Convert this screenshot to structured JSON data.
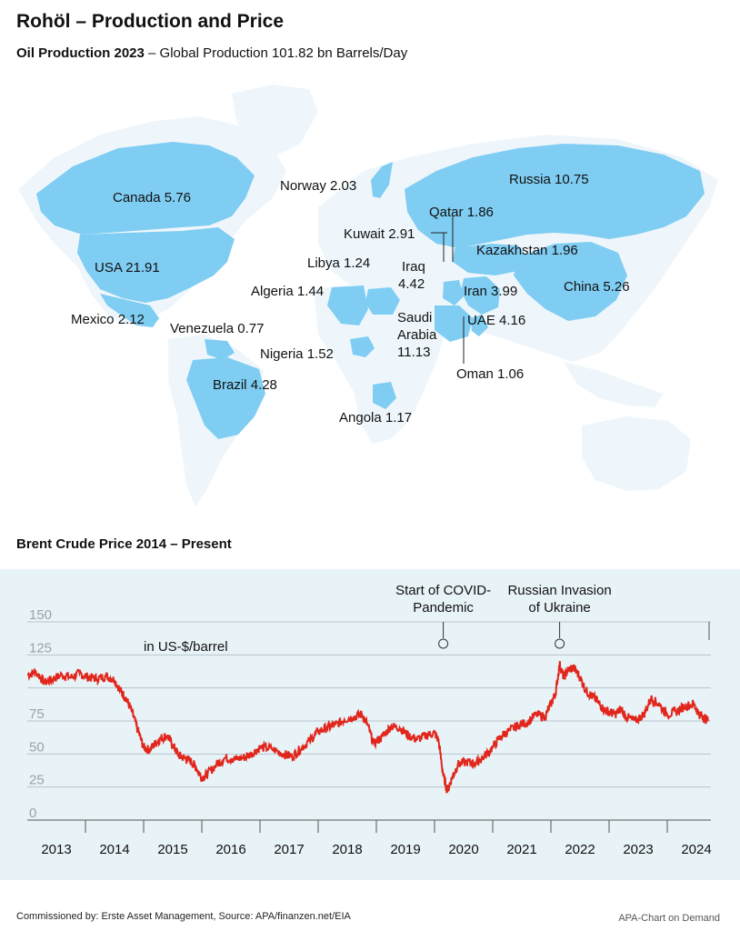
{
  "header": {
    "title": "Rohöl – Production and Price",
    "subtitle_bold": "Oil Production 2023",
    "subtitle_rest": " – Global Production 101.82 bn Barrels/Day"
  },
  "map": {
    "land_color": "#eef6fb",
    "highlight_color": "#7fcdf2",
    "countries": [
      {
        "name": "Canada",
        "value": "5.76"
      },
      {
        "name": "USA",
        "value": "21.91"
      },
      {
        "name": "Mexico",
        "value": "2.12"
      },
      {
        "name": "Venezuela",
        "value": "0.77"
      },
      {
        "name": "Brazil",
        "value": "4.28"
      },
      {
        "name": "Norway",
        "value": "2.03"
      },
      {
        "name": "Russia",
        "value": "10.75"
      },
      {
        "name": "Qatar",
        "value": "1.86"
      },
      {
        "name": "Kuwait",
        "value": "2.91"
      },
      {
        "name": "Kazakhstan",
        "value": "1.96"
      },
      {
        "name": "Libya",
        "value": "1.24"
      },
      {
        "name": "Iraq",
        "value": "4.42"
      },
      {
        "name": "Algeria",
        "value": "1.44"
      },
      {
        "name": "Iran",
        "value": "3.99"
      },
      {
        "name": "China",
        "value": "5.26"
      },
      {
        "name": "UAE",
        "value": "4.16"
      },
      {
        "name": "Saudi Arabia",
        "value": "11.13"
      },
      {
        "name": "Nigeria",
        "value": "1.52"
      },
      {
        "name": "Oman",
        "value": "1.06"
      },
      {
        "name": "Angola",
        "value": "1.17"
      }
    ]
  },
  "chart_data": {
    "type": "line",
    "title": "Brent Crude Price 2014 – Present",
    "unit_label": "in US-$/barrel",
    "line_color": "#e1261c",
    "ylim": [
      0,
      150
    ],
    "yticks": [
      0,
      25,
      50,
      75,
      125,
      150
    ],
    "x_tick_labels": [
      "2013",
      "2014",
      "2015",
      "2016",
      "2017",
      "2018",
      "2019",
      "2020",
      "2021",
      "2022",
      "2023",
      "2024"
    ],
    "xlim": [
      2013.0,
      2024.75
    ],
    "series": [
      {
        "values_x": [
          2013.0,
          2013.15,
          2013.3,
          2013.45,
          2013.6,
          2013.75,
          2013.9,
          2014.05,
          2014.2,
          2014.35,
          2014.5,
          2014.6,
          2014.7,
          2014.8,
          2014.9,
          2015.0,
          2015.1,
          2015.2,
          2015.3,
          2015.4,
          2015.5,
          2015.6,
          2015.7,
          2015.8,
          2015.9,
          2016.0,
          2016.1,
          2016.25,
          2016.4,
          2016.55,
          2016.7,
          2016.85,
          2017.0,
          2017.2,
          2017.4,
          2017.55,
          2017.7,
          2017.85,
          2018.0,
          2018.15,
          2018.3,
          2018.45,
          2018.6,
          2018.75,
          2018.85,
          2018.95,
          2019.1,
          2019.25,
          2019.4,
          2019.55,
          2019.7,
          2019.85,
          2020.0,
          2020.07,
          2020.15,
          2020.22,
          2020.3,
          2020.4,
          2020.55,
          2020.7,
          2020.85,
          2021.0,
          2021.15,
          2021.3,
          2021.45,
          2021.6,
          2021.75,
          2021.9,
          2022.0,
          2022.08,
          2022.15,
          2022.22,
          2022.3,
          2022.4,
          2022.5,
          2022.6,
          2022.7,
          2022.8,
          2022.9,
          2023.0,
          2023.1,
          2023.2,
          2023.3,
          2023.45,
          2023.6,
          2023.72,
          2023.85,
          2024.0,
          2024.15,
          2024.3,
          2024.45,
          2024.55,
          2024.62,
          2024.7
        ],
        "values_y": [
          110,
          112,
          104,
          107,
          110,
          108,
          111,
          108,
          107,
          109,
          106,
          98,
          92,
          82,
          68,
          55,
          53,
          58,
          62,
          64,
          57,
          49,
          47,
          45,
          40,
          32,
          35,
          42,
          47,
          46,
          47,
          50,
          55,
          54,
          50,
          48,
          54,
          60,
          67,
          70,
          72,
          76,
          78,
          80,
          72,
          58,
          63,
          71,
          70,
          64,
          61,
          64,
          66,
          60,
          34,
          22,
          32,
          42,
          44,
          43,
          48,
          55,
          64,
          68,
          72,
          74,
          80,
          78,
          88,
          96,
          118,
          108,
          114,
          115,
          108,
          98,
          94,
          90,
          84,
          82,
          80,
          84,
          78,
          75,
          80,
          92,
          88,
          80,
          82,
          86,
          88,
          80,
          78,
          75
        ],
        "name": ""
      }
    ],
    "annotations": [
      {
        "x": 2020.15,
        "text_lines": [
          "Start of COVID-",
          "Pandemic"
        ]
      },
      {
        "x": 2022.15,
        "text_lines": [
          "Russian Invasion",
          "of Ukraine"
        ]
      }
    ]
  },
  "footer": {
    "left": "Commissioned by: Erste Asset Management, Source: APA/finanzen.net/EIA",
    "right": "APA-Chart on Demand"
  }
}
